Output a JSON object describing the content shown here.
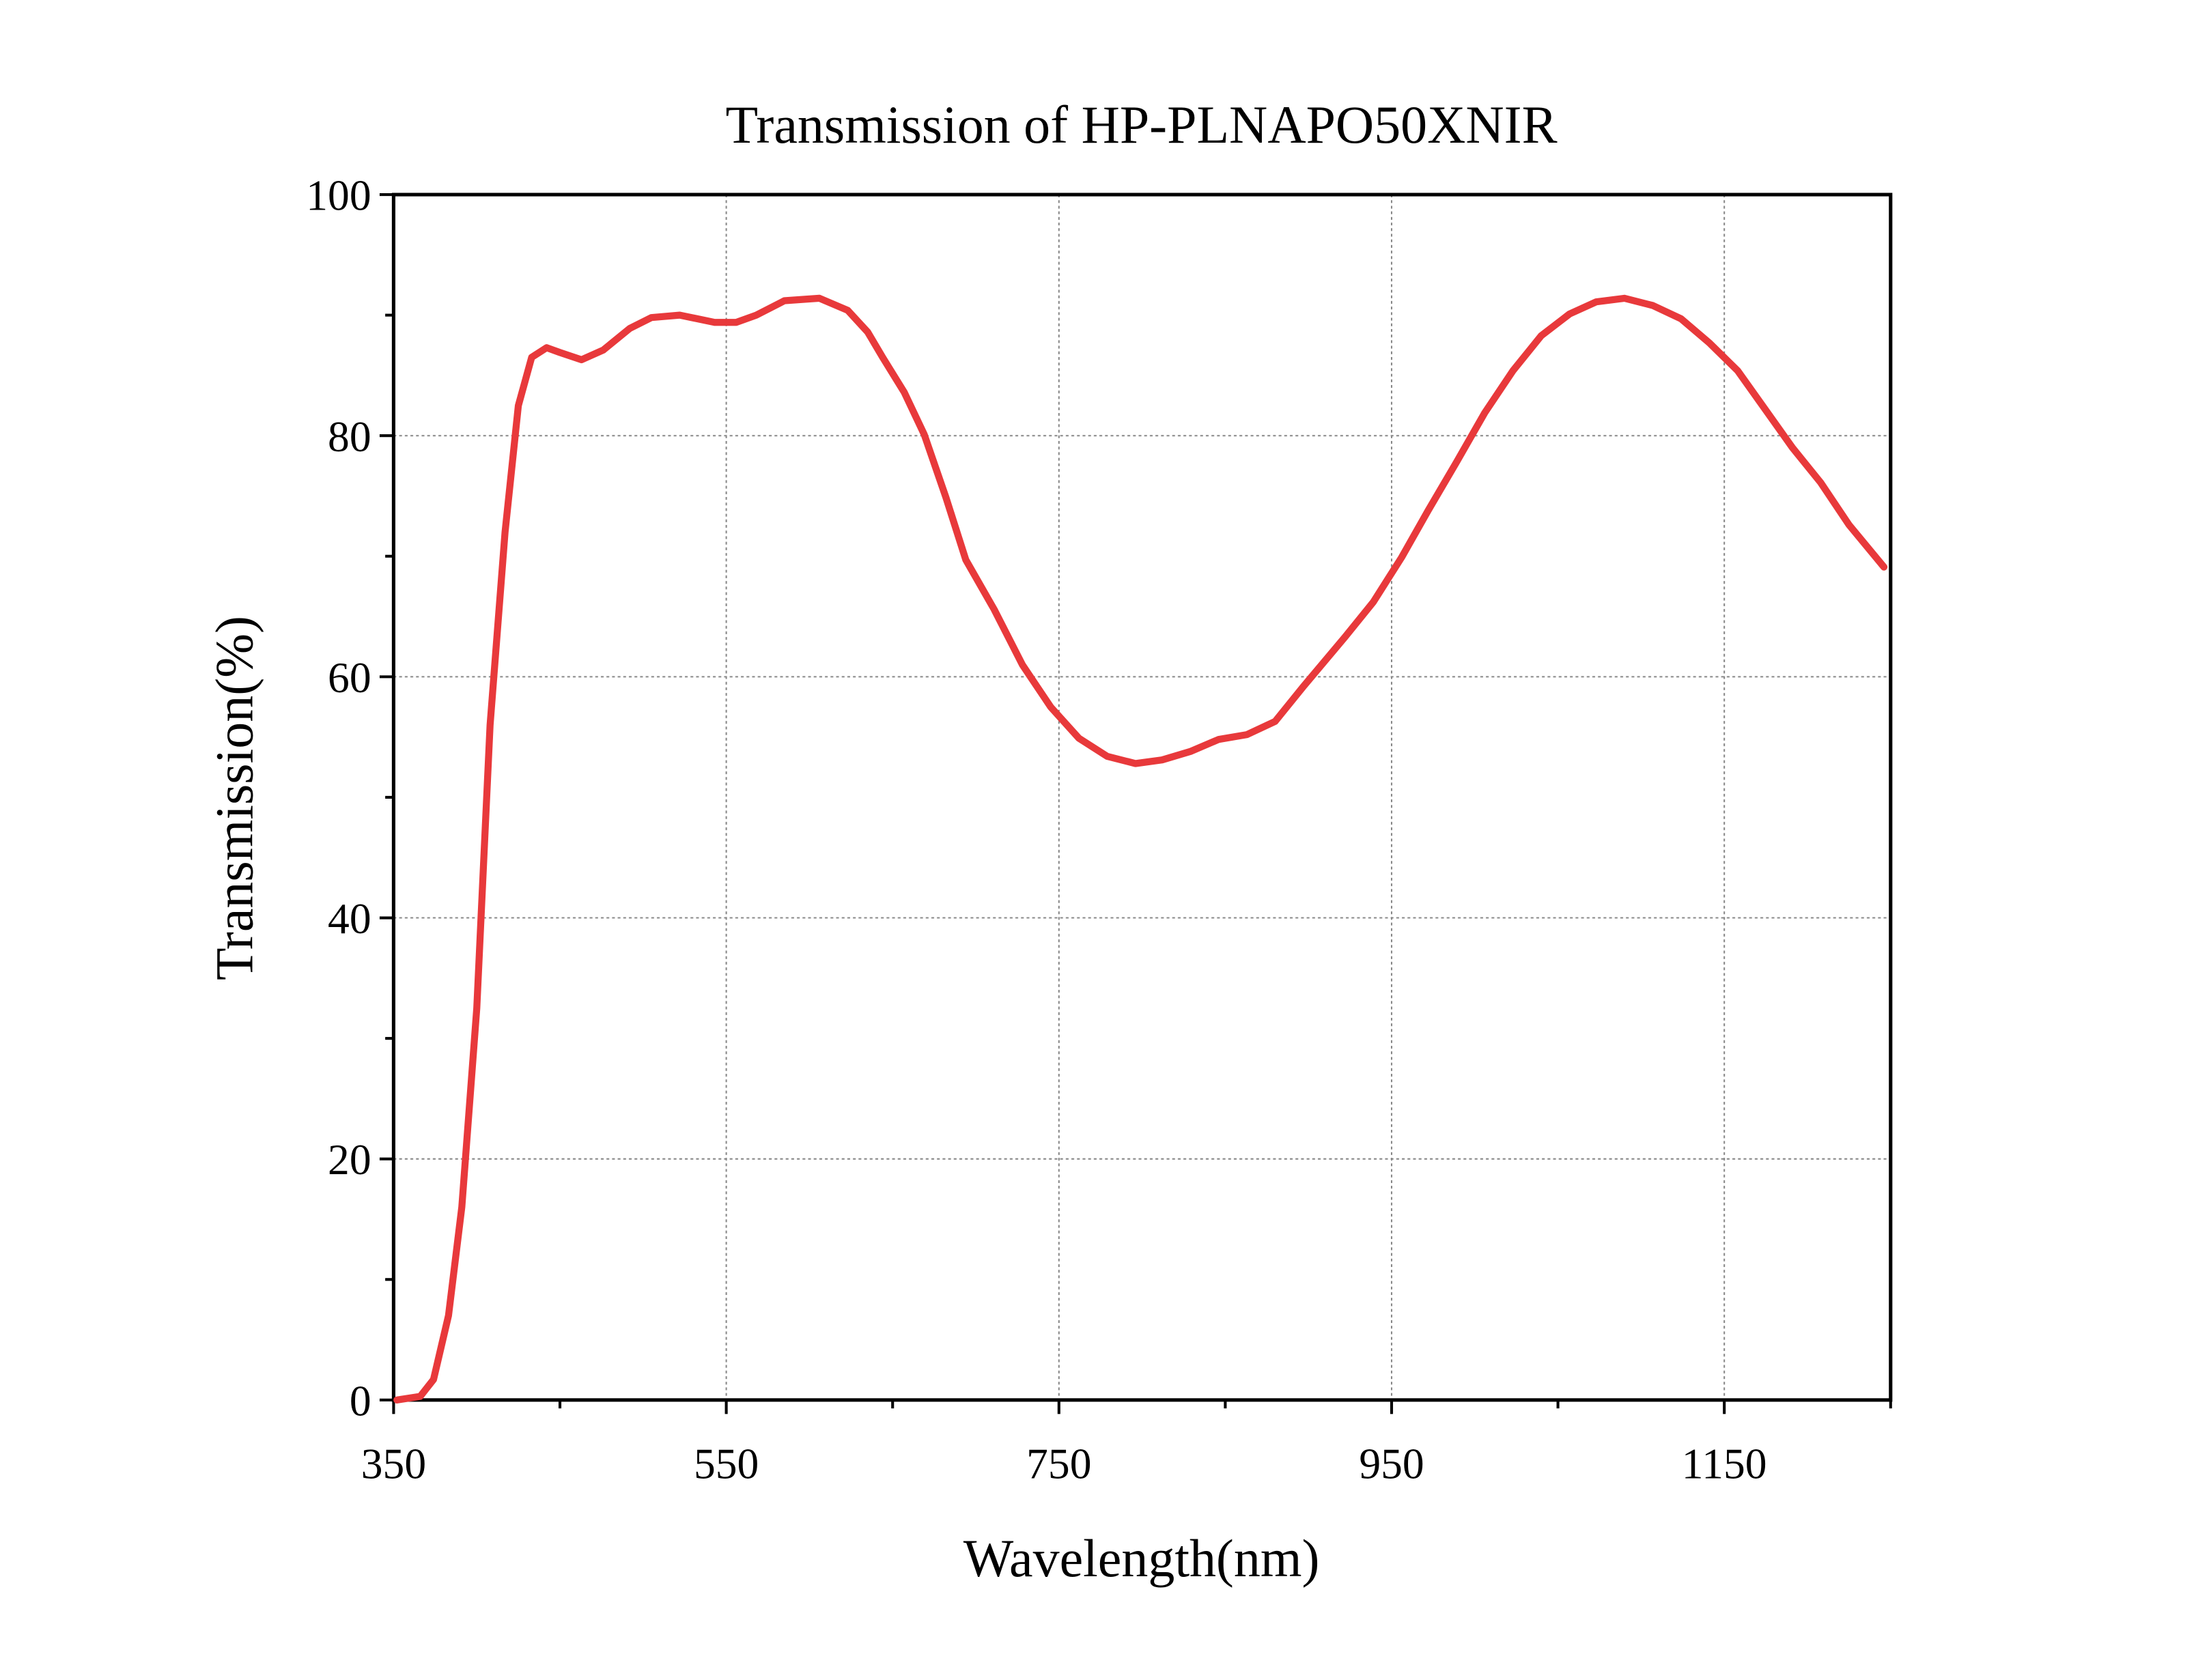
{
  "chart_data": {
    "type": "line",
    "title": "Transmission of HP-PLNAPO50XNIR",
    "x_label": "Wavelength(nm)",
    "y_label": "Transmission(%)",
    "x": [
      352,
      366,
      374,
      383,
      391,
      400,
      408,
      417,
      425,
      433,
      442,
      450,
      463,
      476,
      492,
      505,
      522,
      543,
      556,
      568,
      585,
      606,
      623,
      635,
      644,
      657,
      669,
      682,
      694,
      711,
      728,
      745,
      762,
      779,
      796,
      812,
      829,
      846,
      863,
      880,
      897,
      922,
      939,
      956,
      972,
      989,
      1006,
      1023,
      1040,
      1057,
      1073,
      1090,
      1107,
      1124,
      1141,
      1158,
      1174,
      1191,
      1208,
      1225,
      1246
    ],
    "series": [
      {
        "name": "Transmission",
        "color": "#e8393b",
        "values": [
          0,
          0.3,
          1.7,
          7,
          16,
          32.5,
          56,
          72,
          82.5,
          86.5,
          87.3,
          86.9,
          86.3,
          87.1,
          88.9,
          89.8,
          90,
          89.4,
          89.4,
          90,
          91.2,
          91.4,
          90.4,
          88.6,
          86.5,
          83.6,
          80.1,
          74.9,
          69.7,
          65.6,
          61,
          57.5,
          54.9,
          53.4,
          52.8,
          53.1,
          53.8,
          54.8,
          55.2,
          56.3,
          59.2,
          63.3,
          66.2,
          69.9,
          73.8,
          77.8,
          81.9,
          85.4,
          88.3,
          90.1,
          91.1,
          91.4,
          90.8,
          89.7,
          87.7,
          85.4,
          82.3,
          79,
          76.1,
          72.6,
          69.1
        ]
      }
    ],
    "xlim": [
      350,
      1250
    ],
    "xticks": [
      350,
      550,
      750,
      950,
      1150
    ],
    "xminor": [
      450,
      650,
      850,
      1050,
      1250
    ],
    "ylim": [
      0,
      100
    ],
    "yticks": [
      0,
      20,
      40,
      60,
      80,
      100
    ],
    "yminor": [
      10,
      30,
      50,
      70,
      90
    ],
    "grid": true
  }
}
